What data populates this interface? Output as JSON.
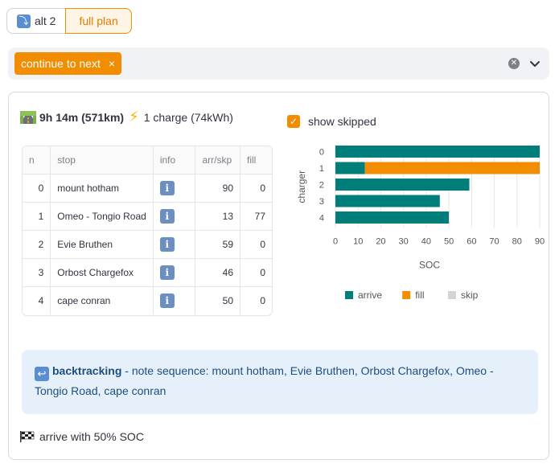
{
  "segmented": {
    "options": [
      {
        "icon": "return-arrow-icon",
        "glyph": "⤵",
        "label": "alt 2"
      },
      {
        "label": "full plan"
      }
    ],
    "selected": "full plan"
  },
  "multiselect": {
    "tags": [
      "continue to next"
    ],
    "tag_close_glyph": "×"
  },
  "summary": {
    "duration": "9h 14m (571km)",
    "charges": "1 charge (74kWh)"
  },
  "show_skipped": {
    "label": "show skipped",
    "checked": true,
    "check_glyph": "✓"
  },
  "table": {
    "columns": [
      "n",
      "stop",
      "info",
      "arr/skp",
      "fill"
    ],
    "rows": [
      {
        "n": "0",
        "stop": "mount hotham",
        "arr": "90",
        "fill": "0"
      },
      {
        "n": "1",
        "stop": "Omeo - Tongio Road",
        "arr": "13",
        "fill": "77"
      },
      {
        "n": "2",
        "stop": "Evie Bruthen",
        "arr": "59",
        "fill": "0"
      },
      {
        "n": "3",
        "stop": "Orbost Chargefox",
        "arr": "46",
        "fill": "0"
      },
      {
        "n": "4",
        "stop": "cape conran",
        "arr": "50",
        "fill": "0"
      }
    ],
    "info_glyph": "i"
  },
  "chart_data": {
    "type": "bar",
    "orientation": "horizontal",
    "stacked": true,
    "categories": [
      "0",
      "1",
      "2",
      "3",
      "4"
    ],
    "series": [
      {
        "name": "arrive",
        "color": "#007f7a",
        "values": [
          90,
          13,
          59,
          46,
          50
        ]
      },
      {
        "name": "fill",
        "color": "#f28c00",
        "values": [
          0,
          77,
          0,
          0,
          0
        ]
      },
      {
        "name": "skip",
        "color": "#d3d3d3",
        "values": [
          0,
          0,
          0,
          0,
          0
        ]
      }
    ],
    "xlabel": "SOC",
    "ylabel": "charger",
    "xlim": [
      0,
      90
    ],
    "xticks": [
      "0",
      "10",
      "20",
      "30",
      "40",
      "50",
      "60",
      "70",
      "80",
      "90"
    ],
    "grid": true,
    "legend": "bottom"
  },
  "callout": {
    "icon_glyph": "↩",
    "bold": "backtracking",
    "text": " - note sequence: mount hotham, Evie Bruthen, Orbost Chargefox, Omeo - Tongio Road, cape conran"
  },
  "footer": {
    "text": "arrive with 50% SOC"
  }
}
